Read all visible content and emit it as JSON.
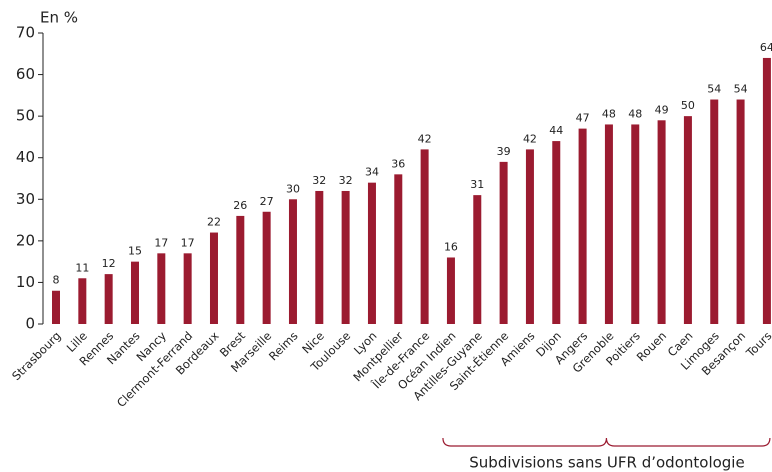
{
  "chart_data": {
    "type": "bar",
    "y_label": "En %",
    "categories": [
      "Strasbourg",
      "Lille",
      "Rennes",
      "Nantes",
      "Nancy",
      "Clermont-Ferrand",
      "Bordeaux",
      "Brest",
      "Marseille",
      "Reims",
      "Nice",
      "Toulouse",
      "Lyon",
      "Montpellier",
      "Île-de-France",
      "Océan Indien",
      "Antilles-Guyane",
      "Saint-Étienne",
      "Amiens",
      "Dijon",
      "Angers",
      "Grenoble",
      "Poitiers",
      "Rouen",
      "Caen",
      "Limoges",
      "Besançon",
      "Tours"
    ],
    "values": [
      8,
      11,
      12,
      15,
      17,
      17,
      22,
      26,
      27,
      30,
      32,
      32,
      34,
      36,
      42,
      16,
      31,
      39,
      42,
      44,
      47,
      48,
      48,
      49,
      50,
      54,
      54,
      64
    ],
    "color": "#9b1b30",
    "ylim": [
      0,
      70
    ],
    "yticks": [
      0,
      10,
      20,
      30,
      40,
      50,
      60,
      70
    ],
    "grid": false,
    "annotation": "Subdivisions sans UFR d’odontologie"
  }
}
